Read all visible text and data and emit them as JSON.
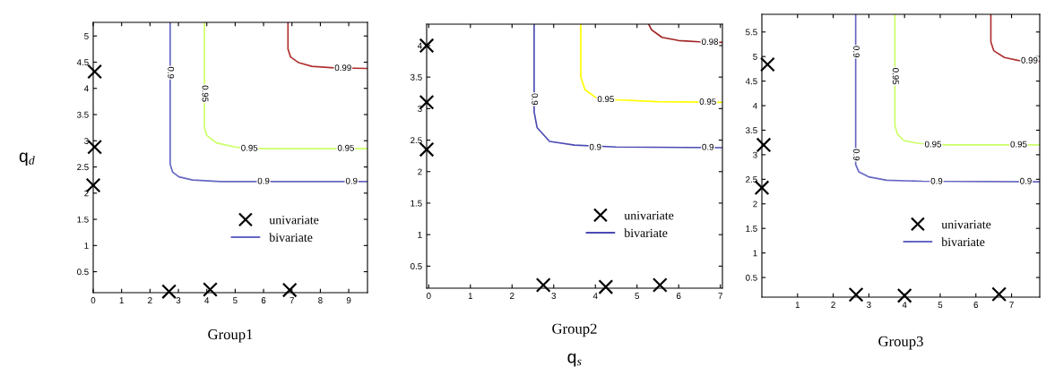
{
  "chart_data": [
    {
      "type": "line",
      "title": "Group1",
      "ylabel": "q$_{d}$",
      "xlim": [
        0,
        9.66
      ],
      "ylim": [
        0.1,
        5.26
      ],
      "xticks": [
        0,
        1,
        2,
        3,
        4,
        5,
        6,
        7,
        8,
        9
      ],
      "yticks": [
        0.5,
        1,
        1.5,
        2,
        2.5,
        3,
        3.5,
        4,
        4.5,
        5
      ],
      "legend": "bottom right",
      "grid": false,
      "series": [
        {
          "name": "univariate",
          "type": "scatter",
          "marker": "cross",
          "color": "#000000",
          "x": [
            0.05,
            0.05,
            0,
            2.67,
            4.12,
            6.92
          ],
          "values": [
            4.32,
            2.88,
            2.15,
            0.12,
            0.16,
            0.15
          ]
        },
        {
          "name": "bivariate",
          "color": "#6666c4",
          "x": [
            2.71,
            2.71,
            2.8,
            3.02,
            3.5,
            4.5,
            9.66
          ],
          "values": [
            5.26,
            2.55,
            2.4,
            2.31,
            2.25,
            2.22,
            2.22
          ]
        },
        {
          "color": "#ccff66",
          "x": [
            3.92,
            3.92,
            4.0,
            4.34,
            5.0,
            6.0,
            9.66
          ],
          "values": [
            5.26,
            3.25,
            3.1,
            2.96,
            2.88,
            2.85,
            2.85
          ]
        },
        {
          "color": "#b03030",
          "x": [
            6.86,
            6.86,
            6.95,
            7.24,
            7.7,
            8.5,
            9.66
          ],
          "values": [
            5.26,
            4.75,
            4.6,
            4.49,
            4.42,
            4.39,
            4.38
          ]
        }
      ],
      "annotations": [
        {
          "text": "0.9",
          "x": 2.71,
          "y": 4.3
        },
        {
          "text": "0.9",
          "x": 6.0,
          "y": 2.22
        },
        {
          "text": "0.9",
          "x": 9.1,
          "y": 2.22
        },
        {
          "text": "0.95",
          "x": 3.92,
          "y": 3.9
        },
        {
          "text": "0.95",
          "x": 5.5,
          "y": 2.85
        },
        {
          "text": "0.95",
          "x": 8.9,
          "y": 2.85
        },
        {
          "text": "0.99",
          "x": 8.8,
          "y": 4.38
        }
      ]
    },
    {
      "type": "line",
      "title": "Group2",
      "xlabel": "q$_{s}$",
      "xlim": [
        -0.05,
        7.05
      ],
      "ylim": [
        0.15,
        4.34
      ],
      "xticks": [
        0,
        1,
        2,
        3,
        4,
        5,
        6,
        7
      ],
      "yticks": [
        0.5,
        1,
        1.5,
        2,
        2.5,
        3,
        3.5,
        4
      ],
      "legend": "bottom right",
      "grid": false,
      "series": [
        {
          "name": "univariate",
          "type": "scatter",
          "marker": "cross",
          "color": "#000000",
          "x": [
            -0.05,
            -0.05,
            -0.05,
            2.75,
            4.25,
            5.55
          ],
          "values": [
            4.0,
            3.1,
            2.35,
            0.2,
            0.17,
            0.2
          ]
        },
        {
          "name": "bivariate",
          "color": "#4b4bb4",
          "x": [
            2.53,
            2.53,
            2.6,
            2.9,
            3.5,
            4.5,
            7.05
          ],
          "values": [
            4.34,
            2.95,
            2.7,
            2.48,
            2.42,
            2.39,
            2.38
          ]
        },
        {
          "color": "#ffff00",
          "x": [
            3.65,
            3.65,
            3.75,
            4.0,
            4.5,
            5.5,
            7.05
          ],
          "values": [
            4.34,
            3.5,
            3.3,
            3.18,
            3.14,
            3.11,
            3.1
          ]
        },
        {
          "color": "#a02020",
          "x": [
            5.28,
            5.35,
            5.6,
            6.0,
            6.5,
            7.05
          ],
          "values": [
            4.34,
            4.25,
            4.13,
            4.08,
            4.06,
            4.05
          ]
        }
      ],
      "annotations": [
        {
          "text": "0.9",
          "x": 2.53,
          "y": 3.15
        },
        {
          "text": "0.9",
          "x": 4.0,
          "y": 2.38
        },
        {
          "text": "0.9",
          "x": 6.7,
          "y": 2.38
        },
        {
          "text": "0.95",
          "x": 4.25,
          "y": 3.14
        },
        {
          "text": "0.95",
          "x": 6.7,
          "y": 3.1
        },
        {
          "text": "0.98",
          "x": 6.75,
          "y": 4.05
        }
      ]
    },
    {
      "type": "line",
      "title": "Group3",
      "xlim": [
        0,
        7.79
      ],
      "ylim": [
        0.1,
        5.86
      ],
      "xticks": [
        1,
        2,
        3,
        4,
        5,
        6,
        7
      ],
      "yticks": [
        0.5,
        1,
        1.5,
        2,
        2.5,
        3,
        3.5,
        4,
        4.5,
        5,
        5.5
      ],
      "legend": "bottom right",
      "grid": false,
      "series": [
        {
          "name": "univariate",
          "type": "scatter",
          "marker": "cross",
          "color": "#000000",
          "x": [
            0.16,
            0.05,
            0,
            2.64,
            4.0,
            6.65
          ],
          "values": [
            4.84,
            3.2,
            2.33,
            0.15,
            0.13,
            0.16
          ]
        },
        {
          "name": "bivariate",
          "color": "#6666c4",
          "x": [
            2.63,
            2.63,
            2.72,
            2.99,
            3.5,
            4.5,
            7.79
          ],
          "values": [
            5.86,
            2.8,
            2.65,
            2.55,
            2.48,
            2.46,
            2.45
          ]
        },
        {
          "color": "#ccff66",
          "x": [
            3.73,
            3.73,
            3.8,
            3.98,
            4.4,
            5.2,
            7.79
          ],
          "values": [
            5.86,
            3.6,
            3.42,
            3.29,
            3.23,
            3.2,
            3.2
          ]
        },
        {
          "color": "#b03030",
          "x": [
            6.42,
            6.42,
            6.5,
            6.8,
            7.2,
            7.79
          ],
          "values": [
            5.86,
            5.3,
            5.12,
            4.98,
            4.92,
            4.9
          ]
        }
      ],
      "annotations": [
        {
          "text": "0.9",
          "x": 2.63,
          "y": 5.1
        },
        {
          "text": "0.9",
          "x": 2.63,
          "y": 3.0
        },
        {
          "text": "0.9",
          "x": 4.9,
          "y": 2.45
        },
        {
          "text": "0.9",
          "x": 7.4,
          "y": 2.45
        },
        {
          "text": "0.95",
          "x": 3.73,
          "y": 4.6
        },
        {
          "text": "0.95",
          "x": 4.8,
          "y": 3.2
        },
        {
          "text": "0.95",
          "x": 7.2,
          "y": 3.2
        },
        {
          "text": "0.99",
          "x": 7.5,
          "y": 4.91
        }
      ]
    }
  ]
}
